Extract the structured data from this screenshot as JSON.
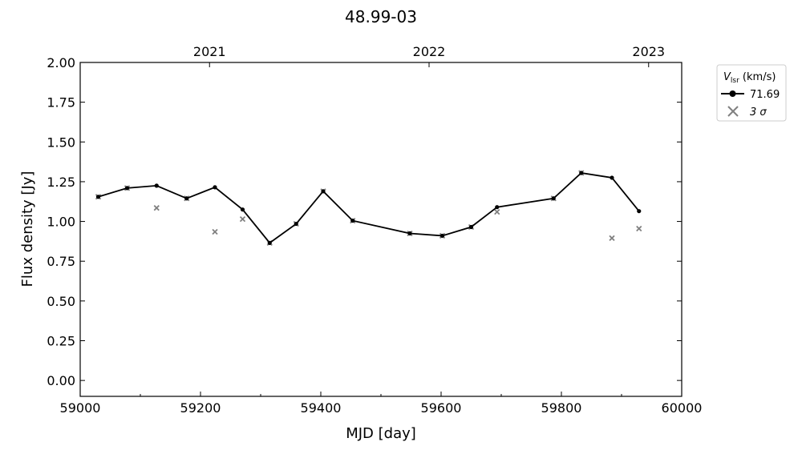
{
  "chart_data": {
    "type": "line",
    "title": "48.99-03",
    "xlabel": "MJD [day]",
    "ylabel": "Flux density [Jy]",
    "xlim": [
      59000,
      60000
    ],
    "ylim": [
      -0.1,
      2.0
    ],
    "x_ticks": [
      59000,
      59200,
      59400,
      59600,
      59800,
      60000
    ],
    "x_tick_labels": [
      "59000",
      "59200",
      "59400",
      "59600",
      "59800",
      "60000"
    ],
    "y_ticks": [
      0.0,
      0.25,
      0.5,
      0.75,
      1.0,
      1.25,
      1.5,
      1.75,
      2.0
    ],
    "y_tick_labels": [
      "0.00",
      "0.25",
      "0.50",
      "0.75",
      "1.00",
      "1.25",
      "1.50",
      "1.75",
      "2.00"
    ],
    "top_axis": {
      "ticks": [
        59215,
        59580,
        59945
      ],
      "labels": [
        "2021",
        "2022",
        "2023"
      ]
    },
    "grid": false,
    "legend": {
      "placement": "outside-right",
      "title": "V_lsr (km/s)",
      "entries": [
        "71.69",
        "3 σ"
      ]
    },
    "series": [
      {
        "name": "71.69",
        "style": "line-dot",
        "color": "#000000",
        "x": [
          59030,
          59078,
          59127,
          59177,
          59224,
          59270,
          59315,
          59359,
          59404,
          59453,
          59548,
          59602,
          59650,
          59693,
          59787,
          59833,
          59884,
          59929
        ],
        "y": [
          1.155,
          1.21,
          1.225,
          1.145,
          1.215,
          1.075,
          0.865,
          0.985,
          1.19,
          1.005,
          0.925,
          0.91,
          0.965,
          1.09,
          1.145,
          1.305,
          1.275,
          1.065
        ]
      },
      {
        "name": "3 σ",
        "style": "x-marker",
        "color": "#808080",
        "x": [
          59030,
          59078,
          59127,
          59177,
          59224,
          59270,
          59315,
          59359,
          59404,
          59453,
          59548,
          59602,
          59650,
          59693,
          59787,
          59833,
          59884,
          59929
        ],
        "y": [
          1.155,
          1.21,
          1.085,
          1.145,
          0.935,
          1.015,
          0.865,
          0.985,
          1.19,
          1.005,
          0.925,
          0.91,
          0.965,
          1.06,
          1.145,
          1.305,
          0.895,
          0.955
        ]
      }
    ]
  }
}
